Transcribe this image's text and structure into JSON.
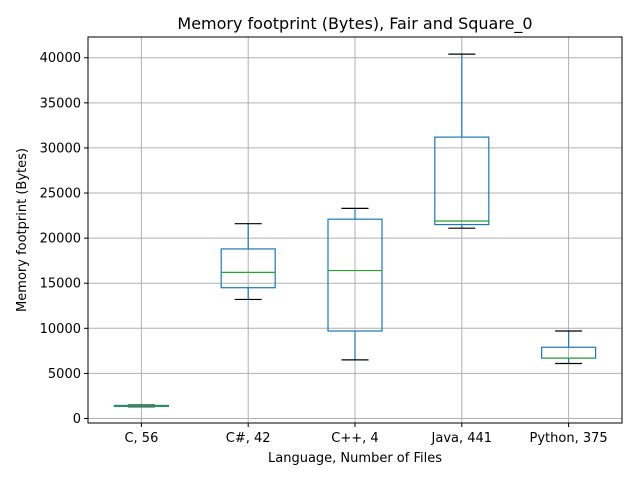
{
  "chart_data": {
    "type": "box",
    "title": "Memory footprint (Bytes), Fair and Square_0",
    "xlabel": "Language, Number of Files",
    "ylabel": "Memory footprint (Bytes)",
    "ylim": [
      -500,
      42300
    ],
    "yticks": [
      0,
      5000,
      10000,
      15000,
      20000,
      25000,
      30000,
      35000,
      40000
    ],
    "grid": true,
    "categories": [
      "C, 56",
      "C#, 42",
      "C++, 4",
      "Java, 441",
      "Python, 375"
    ],
    "boxes": [
      {
        "whisker_low": 1300,
        "q1": 1350,
        "median": 1400,
        "q3": 1450,
        "whisker_high": 1500
      },
      {
        "whisker_low": 13200,
        "q1": 14500,
        "median": 16200,
        "q3": 18800,
        "whisker_high": 21600
      },
      {
        "whisker_low": 6500,
        "q1": 9700,
        "median": 16400,
        "q3": 22100,
        "whisker_high": 23300
      },
      {
        "whisker_low": 21100,
        "q1": 21500,
        "median": 21900,
        "q3": 31200,
        "whisker_high": 40400
      },
      {
        "whisker_low": 6100,
        "q1": 6700,
        "median": 6700,
        "q3": 7900,
        "whisker_high": 9700
      }
    ]
  }
}
